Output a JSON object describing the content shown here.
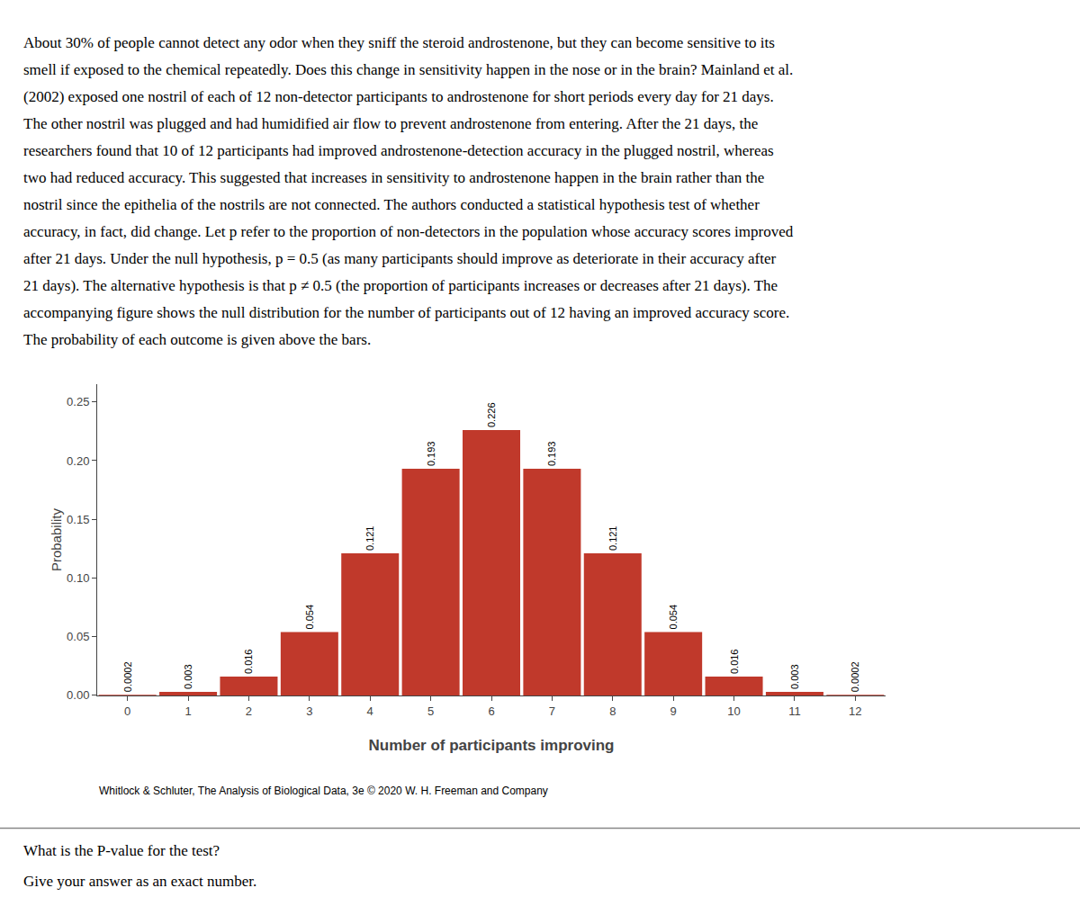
{
  "chart_data": {
    "type": "bar",
    "categories": [
      0,
      1,
      2,
      3,
      4,
      5,
      6,
      7,
      8,
      9,
      10,
      11,
      12
    ],
    "values": [
      0.0002,
      0.003,
      0.016,
      0.054,
      0.121,
      0.193,
      0.226,
      0.193,
      0.121,
      0.054,
      0.016,
      0.003,
      0.0002
    ],
    "color": "#C0392B",
    "xlabel": "Number of participants improving",
    "ylabel": "Probability",
    "ylim": [
      0,
      0.265
    ],
    "yticks": [
      {
        "value": 0,
        "label": "0.00"
      },
      0.05,
      {
        "value": 0.1,
        "label": "0.10"
      },
      0.15,
      {
        "value": 0.2,
        "label": "0.20"
      },
      0.25
    ],
    "grid": false,
    "data_labels": true,
    "annotations": [
      "About 30% of people cannot detect any odor when they sniff the steroid androstenone, but they can become sensitive to its",
      "smell if exposed to the chemical repeatedly. Does this change in sensitivity happen in the nose or in the brain? Mainland et al.",
      "(2002) exposed one nostril of each of 12 non-detector participants to androstenone for short periods every day for 21 days.",
      "The other nostril was plugged and had humidified air flow to prevent androstenone from entering. After the 21 days, the",
      "researchers found that 10 of 12 participants had improved androstenone-detection accuracy in the plugged nostril, whereas",
      "two had reduced accuracy. This suggested that increases in sensitivity to androstenone happen in the brain rather than the",
      "nostril since the epithelia of the nostrils are not connected. The authors conducted a statistical hypothesis test of whether",
      "accuracy, in fact, did change. Let p refer to the proportion of non-detectors in the population whose accuracy scores improved",
      "after 21 days. Under the null hypothesis, p = 0.5 (as many participants should improve as deteriorate in their accuracy after",
      "21 days). The alternative hypothesis is that p ≠ 0.5 (the proportion of participants increases or decreases after 21 days). The",
      "accompanying figure shows the null distribution for the number of participants out of 12 having an improved accuracy score.",
      "The probability of each outcome is given above the bars.",
      "Whitlock & Schluter, The Analysis of Biological Data, 3e © 2020 W. H. Freeman and Company",
      "What is the P-value for the test?",
      "Give your answer as an exact number."
    ]
  }
}
